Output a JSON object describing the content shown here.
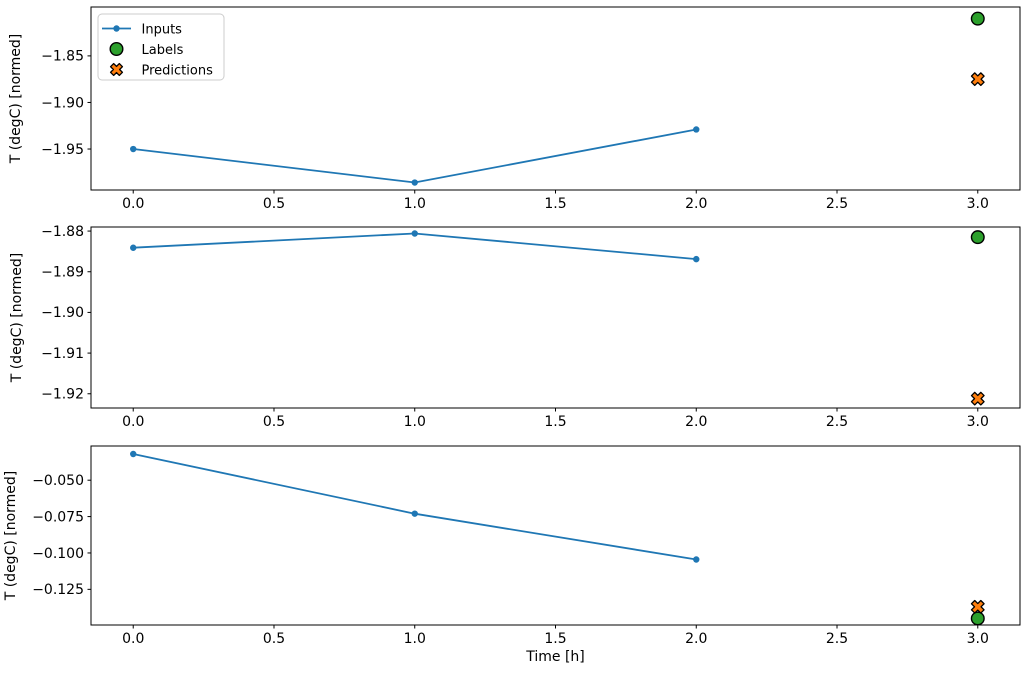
{
  "figure": {
    "background": "#ffffff",
    "axis_color": "#000000",
    "text_color": "#000000",
    "xlabel": "Time [h]",
    "ylabel": "T (degC) [normed]",
    "xlim": [
      -0.15,
      3.15
    ],
    "xticks": [
      {
        "v": 0.0,
        "label": "0.0"
      },
      {
        "v": 0.5,
        "label": "0.5"
      },
      {
        "v": 1.0,
        "label": "1.0"
      },
      {
        "v": 1.5,
        "label": "1.5"
      },
      {
        "v": 2.0,
        "label": "2.0"
      },
      {
        "v": 2.5,
        "label": "2.5"
      },
      {
        "v": 3.0,
        "label": "3.0"
      }
    ],
    "legend": {
      "position": "upper-left",
      "entries": [
        {
          "key": "inputs",
          "label": "Inputs",
          "marker": "line-dot",
          "color": "#1f77b4"
        },
        {
          "key": "labels",
          "label": "Labels",
          "marker": "circle",
          "color": "#2ca02c",
          "edge_color": "#000000"
        },
        {
          "key": "predictions",
          "label": "Predictions",
          "marker": "x-cross",
          "color": "#ff7f0e",
          "edge_color": "#000000"
        }
      ]
    }
  },
  "chart_data": [
    {
      "type": "line",
      "subplot_index": 0,
      "ylabel": "T (degC) [normed]",
      "xlabel": "",
      "ylim": [
        -1.994,
        -1.7975
      ],
      "yticks": [
        {
          "v": -1.85,
          "label": "−1.85"
        },
        {
          "v": -1.9,
          "label": "−1.90"
        },
        {
          "v": -1.95,
          "label": "−1.95"
        }
      ],
      "series": [
        {
          "name": "Inputs",
          "kind": "line",
          "color": "#1f77b4",
          "x": [
            0,
            1,
            2
          ],
          "y": [
            -1.95,
            -1.986,
            -1.929
          ]
        },
        {
          "name": "Labels",
          "kind": "scatter",
          "marker": "circle",
          "color": "#2ca02c",
          "edge_color": "#000000",
          "x": [
            3
          ],
          "y": [
            -1.81
          ]
        },
        {
          "name": "Predictions",
          "kind": "scatter",
          "marker": "x",
          "color": "#ff7f0e",
          "edge_color": "#000000",
          "x": [
            3
          ],
          "y": [
            -1.875
          ]
        }
      ],
      "show_xticklabels": true,
      "show_legend": true
    },
    {
      "type": "line",
      "subplot_index": 1,
      "ylabel": "T (degC) [normed]",
      "xlabel": "",
      "ylim": [
        -1.9235,
        -1.879
      ],
      "yticks": [
        {
          "v": -1.88,
          "label": "−1.88"
        },
        {
          "v": -1.89,
          "label": "−1.89"
        },
        {
          "v": -1.9,
          "label": "−1.90"
        },
        {
          "v": -1.91,
          "label": "−1.91"
        },
        {
          "v": -1.92,
          "label": "−1.92"
        }
      ],
      "series": [
        {
          "name": "Inputs",
          "kind": "line",
          "color": "#1f77b4",
          "x": [
            0,
            1,
            2
          ],
          "y": [
            -1.8841,
            -1.8806,
            -1.8869
          ]
        },
        {
          "name": "Labels",
          "kind": "scatter",
          "marker": "circle",
          "color": "#2ca02c",
          "edge_color": "#000000",
          "x": [
            3
          ],
          "y": [
            -1.8815
          ]
        },
        {
          "name": "Predictions",
          "kind": "scatter",
          "marker": "x",
          "color": "#ff7f0e",
          "edge_color": "#000000",
          "x": [
            3
          ],
          "y": [
            -1.9212
          ]
        }
      ],
      "show_xticklabels": true,
      "show_legend": false
    },
    {
      "type": "line",
      "subplot_index": 2,
      "ylabel": "T (degC) [normed]",
      "xlabel": "Time [h]",
      "ylim": [
        -0.1495,
        -0.0265
      ],
      "yticks": [
        {
          "v": -0.05,
          "label": "−0.050"
        },
        {
          "v": -0.075,
          "label": "−0.075"
        },
        {
          "v": -0.1,
          "label": "−0.100"
        },
        {
          "v": -0.125,
          "label": "−0.125"
        }
      ],
      "series": [
        {
          "name": "Inputs",
          "kind": "line",
          "color": "#1f77b4",
          "x": [
            0,
            1,
            2
          ],
          "y": [
            -0.032,
            -0.073,
            -0.1045
          ]
        },
        {
          "name": "Labels",
          "kind": "scatter",
          "marker": "circle",
          "color": "#2ca02c",
          "edge_color": "#000000",
          "x": [
            3
          ],
          "y": [
            -0.145
          ]
        },
        {
          "name": "Predictions",
          "kind": "scatter",
          "marker": "x",
          "color": "#ff7f0e",
          "edge_color": "#000000",
          "x": [
            3
          ],
          "y": [
            -0.137
          ]
        }
      ],
      "show_xticklabels": true,
      "show_legend": false
    }
  ]
}
